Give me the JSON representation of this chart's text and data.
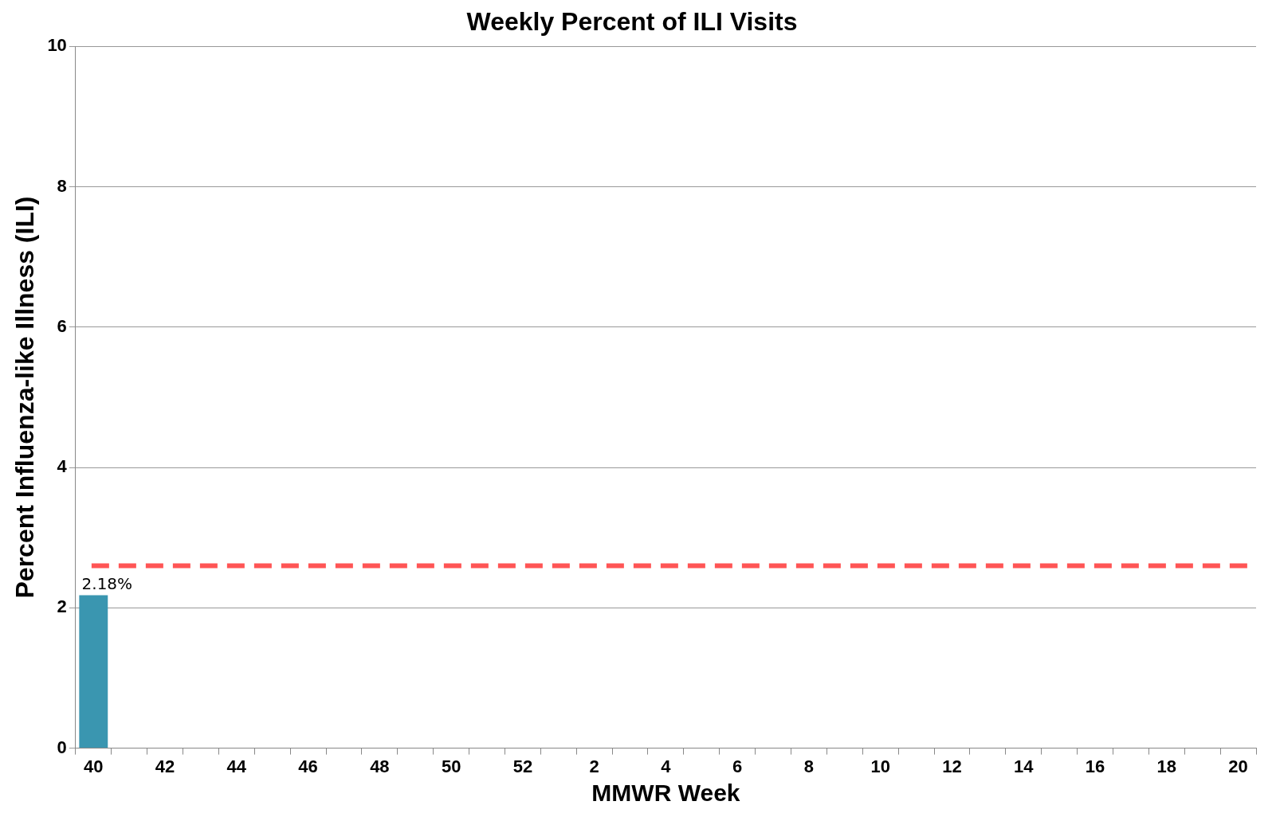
{
  "chart_data": {
    "type": "bar",
    "title": "Weekly Percent of ILI Visits",
    "xlabel": "MMWR Week",
    "ylabel": "Percent Influenza-like Illness (ILI)",
    "categories": [
      "40",
      null,
      "42",
      null,
      "44",
      null,
      "46",
      null,
      "48",
      null,
      "50",
      null,
      "52",
      null,
      "2",
      null,
      "4",
      null,
      "6",
      null,
      "8",
      null,
      "10",
      null,
      "12",
      null,
      "14",
      null,
      "16",
      null,
      "18",
      null,
      "20"
    ],
    "values": [
      2.18,
      null,
      null,
      null,
      null,
      null,
      null,
      null,
      null,
      null,
      null,
      null,
      null,
      null,
      null,
      null,
      null,
      null,
      null,
      null,
      null,
      null,
      null,
      null,
      null,
      null,
      null,
      null,
      null,
      null,
      null,
      null,
      null
    ],
    "value_labels": [
      "2.18%",
      null,
      null,
      null,
      null,
      null,
      null,
      null,
      null,
      null,
      null,
      null,
      null,
      null,
      null,
      null,
      null,
      null,
      null,
      null,
      null,
      null,
      null,
      null,
      null,
      null,
      null,
      null,
      null,
      null,
      null,
      null,
      null
    ],
    "color": "#3a96b0",
    "ylim": [
      0,
      10
    ],
    "yticks": [
      0,
      2,
      4,
      6,
      8,
      10
    ],
    "grid": "y",
    "ref_lines": [
      {
        "axis": "y",
        "value": 2.6,
        "color": "#ff5555",
        "line_style": "dashed"
      }
    ]
  }
}
